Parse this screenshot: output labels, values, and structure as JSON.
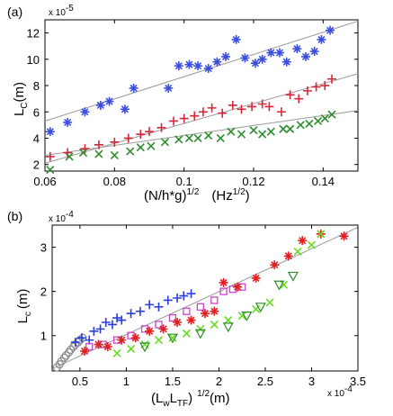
{
  "chart_data": [
    {
      "panel": "(a)",
      "type": "scatter",
      "exponent_label": "x 10",
      "exponent_power": "-5",
      "ylabel_main": "L",
      "ylabel_sub": "C",
      "ylabel_unit": "(m)",
      "xlabel_main": "(N/h*g)",
      "xlabel_power": "1/2",
      "xlabel_unit": "(Hz",
      "xlabel_unit_power": "1/2",
      "xlabel_unit_close": ")",
      "xlim": [
        0.06,
        0.15
      ],
      "ylim": [
        1.5,
        13
      ],
      "xticks": [
        "0.06",
        "0.08",
        "0.1",
        "0.12",
        "0.14"
      ],
      "xtick_values": [
        0.06,
        0.08,
        0.1,
        0.12,
        0.14
      ],
      "yticks": [
        "2",
        "4",
        "6",
        "8",
        "10",
        "12"
      ],
      "ytick_values": [
        2,
        4,
        6,
        8,
        10,
        12
      ],
      "grid": false,
      "series": [
        {
          "marker": "asterisk",
          "color": "#3a4ee0",
          "x": [
            0.0615,
            0.0665,
            0.0715,
            0.076,
            0.0785,
            0.083,
            0.0855,
            0.0955,
            0.0985,
            0.1015,
            0.104,
            0.107,
            0.1095,
            0.112,
            0.115,
            0.1175,
            0.1205,
            0.1225,
            0.125,
            0.1275,
            0.1295,
            0.1325,
            0.135,
            0.1375,
            0.1395,
            0.142
          ],
          "y": [
            4.5,
            5.2,
            6.0,
            6.5,
            6.8,
            6.2,
            7.8,
            7.8,
            9.5,
            9.6,
            9.5,
            9.3,
            9.8,
            10.2,
            11.5,
            10.1,
            9.7,
            10.0,
            10.5,
            10.5,
            9.8,
            10.8,
            10.2,
            10.6,
            11.5,
            12.2
          ]
        },
        {
          "marker": "plus",
          "color": "#d4283a",
          "x": [
            0.0615,
            0.0665,
            0.0715,
            0.0755,
            0.08,
            0.084,
            0.0875,
            0.09,
            0.0935,
            0.097,
            0.1,
            0.103,
            0.1055,
            0.108,
            0.111,
            0.114,
            0.1165,
            0.1195,
            0.1225,
            0.1245,
            0.128,
            0.1305,
            0.133,
            0.1355,
            0.138,
            0.1405,
            0.1425
          ],
          "y": [
            2.6,
            2.9,
            3.2,
            3.5,
            3.7,
            4.0,
            4.3,
            4.5,
            4.8,
            5.3,
            5.5,
            5.7,
            6.0,
            6.3,
            5.9,
            6.5,
            6.2,
            6.4,
            6.6,
            6.4,
            6.0,
            7.3,
            7.0,
            7.6,
            7.9,
            8.0,
            8.5
          ]
        },
        {
          "marker": "cross",
          "color": "#2e8b2e",
          "x": [
            0.0615,
            0.067,
            0.071,
            0.0755,
            0.08,
            0.0845,
            0.0875,
            0.0905,
            0.0945,
            0.0985,
            0.1015,
            0.104,
            0.107,
            0.1105,
            0.1135,
            0.1165,
            0.12,
            0.1225,
            0.125,
            0.1285,
            0.1305,
            0.1335,
            0.136,
            0.1385,
            0.1405,
            0.1425
          ],
          "y": [
            1.6,
            2.6,
            2.9,
            2.8,
            2.7,
            3.0,
            3.3,
            3.4,
            3.7,
            3.9,
            4.0,
            4.0,
            4.2,
            4.0,
            4.5,
            4.3,
            4.6,
            4.3,
            4.5,
            4.7,
            4.7,
            5.0,
            5.1,
            5.3,
            5.5,
            5.8
          ]
        }
      ],
      "fit_lines": [
        {
          "x": [
            0.06,
            0.15
          ],
          "y": [
            5.3,
            12.9
          ]
        },
        {
          "x": [
            0.06,
            0.15
          ],
          "y": [
            2.1,
            8.9
          ]
        },
        {
          "x": [
            0.06,
            0.15
          ],
          "y": [
            2.7,
            6.1
          ]
        }
      ]
    },
    {
      "panel": "(b)",
      "type": "scatter",
      "exponent_label": "x 10",
      "exponent_power": "-4",
      "x_exponent_label": "x 10",
      "x_exponent_power": "-4",
      "ylabel_main": "L",
      "ylabel_sub": "c",
      "ylabel_unit": "(m)",
      "xlabel_open": "(L",
      "xlabel_sub1": "w",
      "xlabel_mid": "L",
      "xlabel_sub2": "TF",
      "xlabel_close": ")",
      "xlabel_power": "1/2",
      "xlabel_unit": "(m)",
      "xlim": [
        0.2,
        3.5
      ],
      "ylim": [
        0.2,
        3.5
      ],
      "xticks": [
        "0.5",
        "1",
        "1.5",
        "2",
        "2.5",
        "3",
        "3.5"
      ],
      "xtick_values": [
        0.5,
        1,
        1.5,
        2,
        2.5,
        3,
        3.5
      ],
      "yticks": [
        "1",
        "2",
        "3"
      ],
      "ytick_values": [
        1,
        2,
        3
      ],
      "grid": false,
      "series": [
        {
          "marker": "circle",
          "color": "#888888",
          "x": [
            0.25,
            0.28,
            0.3,
            0.33,
            0.35,
            0.38,
            0.4,
            0.43,
            0.45,
            0.48,
            0.5,
            0.53
          ],
          "y": [
            0.28,
            0.35,
            0.42,
            0.5,
            0.55,
            0.62,
            0.68,
            0.75,
            0.8,
            0.85,
            0.9,
            0.95
          ]
        },
        {
          "marker": "plus",
          "color": "#2b3ee0",
          "x": [
            0.45,
            0.52,
            0.6,
            0.65,
            0.72,
            0.78,
            0.85,
            0.9,
            0.95,
            1.05,
            1.15,
            1.25,
            1.35,
            1.45,
            1.55,
            1.62,
            1.7
          ],
          "y": [
            0.85,
            0.95,
            0.9,
            1.1,
            1.15,
            1.3,
            1.25,
            1.4,
            1.35,
            1.5,
            1.55,
            1.7,
            1.65,
            1.8,
            1.85,
            1.9,
            1.95
          ]
        },
        {
          "marker": "square",
          "color": "#cc44cc",
          "x": [
            0.6,
            0.75,
            0.9,
            1.05,
            1.2,
            1.35,
            1.5,
            1.65,
            1.8,
            1.95,
            2.05,
            2.15,
            2.25
          ],
          "y": [
            0.75,
            0.8,
            0.9,
            1.0,
            1.15,
            1.25,
            1.4,
            1.55,
            1.65,
            1.8,
            2.0,
            2.05,
            2.1
          ]
        },
        {
          "marker": "asterisk",
          "color": "#e02020",
          "x": [
            0.55,
            0.7,
            0.8,
            0.95,
            1.1,
            1.25,
            1.4,
            1.55,
            1.7,
            1.85,
            1.95,
            2.05,
            2.2,
            2.4,
            2.6,
            2.75,
            2.9,
            3.1,
            3.35
          ],
          "y": [
            0.65,
            0.8,
            0.75,
            0.9,
            0.95,
            1.1,
            1.15,
            1.3,
            1.35,
            1.5,
            1.55,
            2.2,
            2.1,
            2.3,
            2.6,
            2.8,
            3.15,
            3.3,
            3.25
          ]
        },
        {
          "marker": "cross",
          "color": "#66dd22",
          "x": [
            0.9,
            1.05,
            1.2,
            1.35,
            1.5,
            1.65,
            1.8,
            1.95,
            2.1,
            2.25,
            2.4,
            2.55,
            2.7,
            2.85,
            3.0,
            3.1
          ],
          "y": [
            0.6,
            0.7,
            0.8,
            0.9,
            0.95,
            1.05,
            1.15,
            1.25,
            1.35,
            1.45,
            1.6,
            1.75,
            2.15,
            2.9,
            3.05,
            3.3
          ]
        },
        {
          "marker": "triangle-down",
          "color": "#2e8b2e",
          "x": [
            1.2,
            1.5,
            1.8,
            2.1,
            2.3,
            2.45,
            2.65,
            2.8
          ],
          "y": [
            0.75,
            0.95,
            1.05,
            1.2,
            1.45,
            1.65,
            2.15,
            2.35
          ]
        }
      ],
      "fit_lines": [
        {
          "x": [
            0.2,
            3.5
          ],
          "y": [
            0.25,
            3.45
          ]
        }
      ]
    }
  ]
}
